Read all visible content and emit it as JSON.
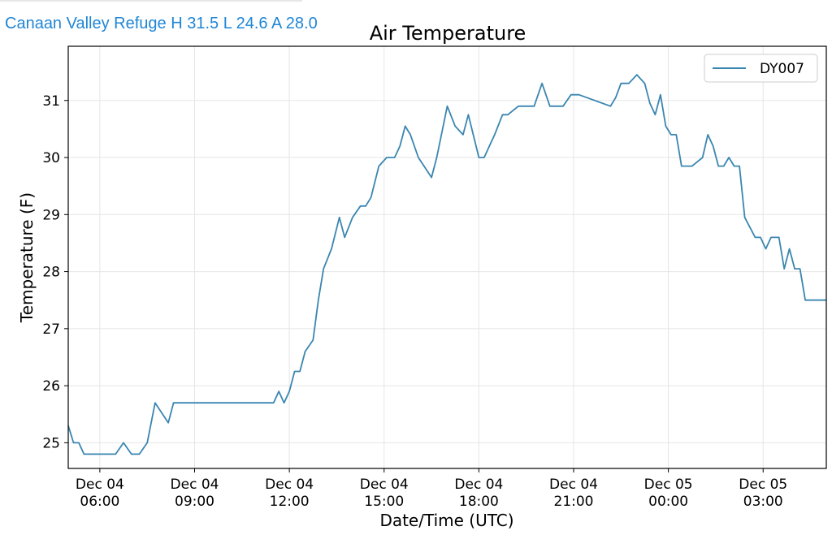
{
  "header": {
    "station_summary": "Canaan Valley Refuge H 31.5 L 24.6 A 28.0"
  },
  "chart_data": {
    "type": "line",
    "title": "Air Temperature",
    "xlabel": "Date/Time (UTC)",
    "ylabel": "Temperature (F)",
    "ylim": [
      24.55,
      31.95
    ],
    "xlim_hours": [
      "Dec 04 05:00",
      "Dec 05 05:00"
    ],
    "grid": true,
    "legend_position": "top-right",
    "y_ticks": [
      25,
      26,
      27,
      28,
      29,
      30,
      31
    ],
    "x_ticks": [
      {
        "date": "Dec 04",
        "time": "06:00"
      },
      {
        "date": "Dec 04",
        "time": "09:00"
      },
      {
        "date": "Dec 04",
        "time": "12:00"
      },
      {
        "date": "Dec 04",
        "time": "15:00"
      },
      {
        "date": "Dec 04",
        "time": "18:00"
      },
      {
        "date": "Dec 04",
        "time": "21:00"
      },
      {
        "date": "Dec 05",
        "time": "00:00"
      },
      {
        "date": "Dec 05",
        "time": "03:00"
      }
    ],
    "series": [
      {
        "name": "DY007",
        "color": "#3a86b0",
        "x": [
          "Dec 04 05:00",
          "Dec 04 05:10",
          "Dec 04 05:20",
          "Dec 04 05:30",
          "Dec 04 06:30",
          "Dec 04 06:45",
          "Dec 04 07:00",
          "Dec 04 07:15",
          "Dec 04 07:30",
          "Dec 04 07:45",
          "Dec 04 08:10",
          "Dec 04 08:20",
          "Dec 04 08:30",
          "Dec 04 11:30",
          "Dec 04 11:40",
          "Dec 04 11:50",
          "Dec 04 12:00",
          "Dec 04 12:10",
          "Dec 04 12:20",
          "Dec 04 12:30",
          "Dec 04 12:45",
          "Dec 04 12:55",
          "Dec 04 13:05",
          "Dec 04 13:20",
          "Dec 04 13:35",
          "Dec 04 13:45",
          "Dec 04 14:00",
          "Dec 04 14:15",
          "Dec 04 14:25",
          "Dec 04 14:35",
          "Dec 04 14:50",
          "Dec 04 15:05",
          "Dec 04 15:20",
          "Dec 04 15:30",
          "Dec 04 15:40",
          "Dec 04 15:50",
          "Dec 04 16:05",
          "Dec 04 16:30",
          "Dec 04 16:40",
          "Dec 04 17:00",
          "Dec 04 17:15",
          "Dec 04 17:30",
          "Dec 04 17:40",
          "Dec 04 18:00",
          "Dec 04 18:10",
          "Dec 04 18:20",
          "Dec 04 18:30",
          "Dec 04 18:45",
          "Dec 04 18:55",
          "Dec 04 19:15",
          "Dec 04 19:30",
          "Dec 04 19:45",
          "Dec 04 20:00",
          "Dec 04 20:15",
          "Dec 04 20:30",
          "Dec 04 20:40",
          "Dec 04 20:55",
          "Dec 04 21:10",
          "Dec 04 22:10",
          "Dec 04 22:20",
          "Dec 04 22:30",
          "Dec 04 22:45",
          "Dec 04 23:00",
          "Dec 04 23:15",
          "Dec 04 23:25",
          "Dec 04 23:35",
          "Dec 04 23:45",
          "Dec 04 23:55",
          "Dec 05 00:05",
          "Dec 05 00:15",
          "Dec 05 00:25",
          "Dec 05 00:35",
          "Dec 05 00:45",
          "Dec 05 01:05",
          "Dec 05 01:15",
          "Dec 05 01:25",
          "Dec 05 01:35",
          "Dec 05 01:45",
          "Dec 05 01:55",
          "Dec 05 02:05",
          "Dec 05 02:15",
          "Dec 05 02:25",
          "Dec 05 02:45",
          "Dec 05 02:55",
          "Dec 05 03:05",
          "Dec 05 03:15",
          "Dec 05 03:30",
          "Dec 05 03:40",
          "Dec 05 03:50",
          "Dec 05 04:00",
          "Dec 05 04:10",
          "Dec 05 04:20",
          "Dec 05 04:30",
          "Dec 05 04:40",
          "Dec 05 04:50",
          "Dec 05 05:00"
        ],
        "values": [
          25.3,
          25.0,
          25.0,
          24.8,
          24.8,
          25.0,
          24.8,
          24.8,
          25.0,
          25.7,
          25.35,
          25.7,
          25.7,
          25.7,
          25.9,
          25.7,
          25.9,
          26.25,
          26.25,
          26.6,
          26.8,
          27.5,
          28.05,
          28.4,
          28.95,
          28.6,
          28.95,
          29.15,
          29.15,
          29.3,
          29.85,
          30.0,
          30.0,
          30.2,
          30.55,
          30.4,
          30.0,
          29.65,
          30.0,
          30.9,
          30.55,
          30.4,
          30.75,
          30.0,
          30.0,
          30.2,
          30.4,
          30.75,
          30.75,
          30.9,
          30.9,
          30.9,
          31.3,
          30.9,
          30.9,
          30.9,
          31.1,
          31.1,
          30.9,
          31.05,
          31.3,
          31.3,
          31.45,
          31.3,
          30.95,
          30.75,
          31.1,
          30.55,
          30.4,
          30.4,
          29.85,
          29.85,
          29.85,
          30.0,
          30.4,
          30.2,
          29.85,
          29.85,
          30.0,
          29.85,
          29.85,
          28.95,
          28.6,
          28.6,
          28.4,
          28.6,
          28.6,
          28.05,
          28.4,
          28.05,
          28.05,
          27.5,
          27.5,
          27.5,
          27.5,
          27.5
        ]
      }
    ]
  }
}
